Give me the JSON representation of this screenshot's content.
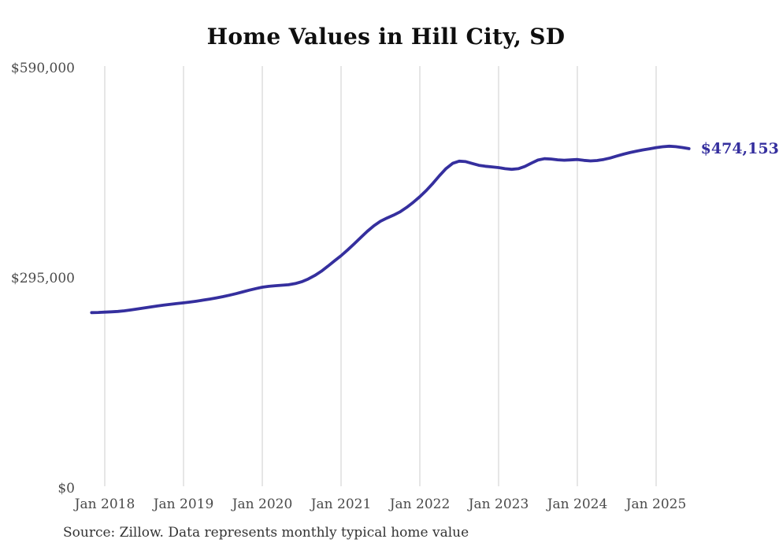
{
  "colors": {
    "line": "#352f9e",
    "annotation": "#352f9e",
    "grid": "#cccccc",
    "axis_text": "#4a4a4a",
    "title_text": "#0f0f0f",
    "source_text": "#333333",
    "background": "#ffffff"
  },
  "source": "Source: Zillow. Data represents monthly typical home value",
  "chart_data": {
    "type": "line",
    "title": "Home Values in Hill City, SD",
    "series_name": "Monthly typical home value",
    "end_annotation": "$474,153",
    "end_value": 474153,
    "ylim": [
      0,
      590000
    ],
    "grid": "vertical-only",
    "legend": "none",
    "y_ticks": [
      {
        "label": "$590,000",
        "value": 590000
      },
      {
        "label": "$295,000",
        "value": 295000
      },
      {
        "label": "$0",
        "value": 0
      }
    ],
    "x_ticks": [
      {
        "label": "Jan 2018",
        "index": 2
      },
      {
        "label": "Jan 2019",
        "index": 14
      },
      {
        "label": "Jan 2020",
        "index": 26
      },
      {
        "label": "Jan 2021",
        "index": 38
      },
      {
        "label": "Jan 2022",
        "index": 50
      },
      {
        "label": "Jan 2023",
        "index": 62
      },
      {
        "label": "Jan 2024",
        "index": 74
      },
      {
        "label": "Jan 2025",
        "index": 86
      }
    ],
    "x": [
      "2017-11",
      "2017-12",
      "2018-01",
      "2018-02",
      "2018-03",
      "2018-04",
      "2018-05",
      "2018-06",
      "2018-07",
      "2018-08",
      "2018-09",
      "2018-10",
      "2018-11",
      "2018-12",
      "2019-01",
      "2019-02",
      "2019-03",
      "2019-04",
      "2019-05",
      "2019-06",
      "2019-07",
      "2019-08",
      "2019-09",
      "2019-10",
      "2019-11",
      "2019-12",
      "2020-01",
      "2020-02",
      "2020-03",
      "2020-04",
      "2020-05",
      "2020-06",
      "2020-07",
      "2020-08",
      "2020-09",
      "2020-10",
      "2020-11",
      "2020-12",
      "2021-01",
      "2021-02",
      "2021-03",
      "2021-04",
      "2021-05",
      "2021-06",
      "2021-07",
      "2021-08",
      "2021-09",
      "2021-10",
      "2021-11",
      "2021-12",
      "2022-01",
      "2022-02",
      "2022-03",
      "2022-04",
      "2022-05",
      "2022-06",
      "2022-07",
      "2022-08",
      "2022-09",
      "2022-10",
      "2022-11",
      "2022-12",
      "2023-01",
      "2023-02",
      "2023-03",
      "2023-04",
      "2023-05",
      "2023-06",
      "2023-07",
      "2023-08",
      "2023-09",
      "2023-10",
      "2023-11",
      "2023-12",
      "2024-01",
      "2024-02",
      "2024-03",
      "2024-04",
      "2024-05",
      "2024-06",
      "2024-07",
      "2024-08",
      "2024-09",
      "2024-10",
      "2024-11",
      "2024-12",
      "2025-01",
      "2025-02",
      "2025-03",
      "2025-04",
      "2025-05",
      "2025-06"
    ],
    "values": [
      243800,
      244100,
      244500,
      244900,
      245500,
      246400,
      247600,
      249000,
      250400,
      251800,
      253100,
      254300,
      255500,
      256600,
      257500,
      258700,
      260000,
      261400,
      262900,
      264500,
      266300,
      268300,
      270500,
      272900,
      275300,
      277500,
      279500,
      280700,
      281600,
      282300,
      283000,
      284600,
      287200,
      291000,
      296000,
      302000,
      309000,
      316500,
      323700,
      331800,
      340400,
      349300,
      358000,
      365800,
      372100,
      376600,
      380700,
      385400,
      391600,
      398800,
      406600,
      415400,
      425500,
      436200,
      446100,
      453400,
      456500,
      455900,
      453200,
      450700,
      449300,
      448500,
      447500,
      445900,
      445000,
      445900,
      449000,
      453800,
      458100,
      460000,
      459500,
      458400,
      457900,
      458300,
      458900,
      457600,
      456900,
      457400,
      458800,
      461000,
      463700,
      466300,
      468600,
      470600,
      472300,
      473900,
      475500,
      476800,
      477500,
      476900,
      475600,
      474153
    ]
  }
}
